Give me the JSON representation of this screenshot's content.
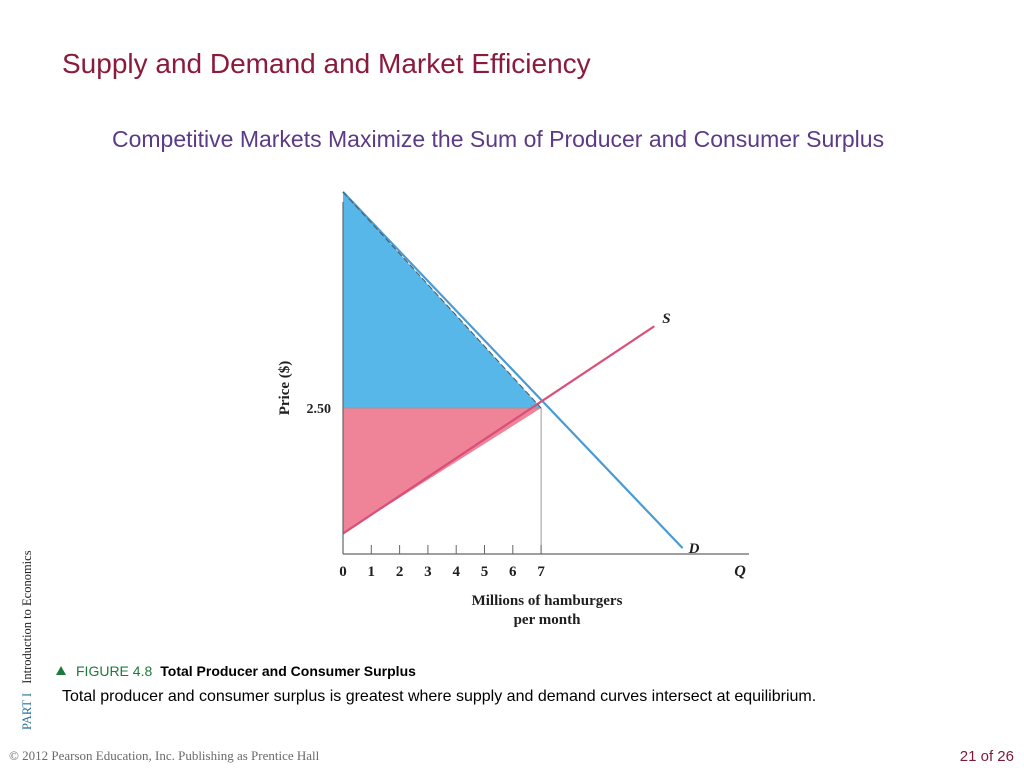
{
  "slide": {
    "title": "Supply and Demand and Market Efficiency",
    "subtitle": "Competitive Markets Maximize the Sum of Producer and Consumer Surplus"
  },
  "side_label": {
    "part": "PART",
    "part_number": "I",
    "book": "Introduction to Economics"
  },
  "figure": {
    "number": "FIGURE 4.8",
    "title": "Total Producer and Consumer Surplus",
    "description": "Total producer and consumer surplus is greatest where supply and demand curves intersect at equilibrium."
  },
  "footer": {
    "copyright": "© 2012 Pearson Education, Inc. Publishing as Prentice Hall",
    "page": "21 of 26"
  },
  "chart_data": {
    "type": "line",
    "x_label_line1": "Millions of hamburgers",
    "x_label_line2": "per month",
    "y_label": "Price ($)",
    "x_axis_letter": "Q",
    "x_ticks": [
      "0",
      "1",
      "2",
      "3",
      "4",
      "5",
      "6",
      "7"
    ],
    "y_tick_label": "2.50",
    "equilibrium": {
      "q": 7,
      "p": 2.5
    },
    "series": [
      {
        "name": "S",
        "color": "#d94f78",
        "points": [
          [
            0,
            0.35
          ],
          [
            11,
            3.9
          ]
        ]
      },
      {
        "name": "D",
        "color": "#4a9bd4",
        "points": [
          [
            0,
            6.2
          ],
          [
            12,
            0.1
          ]
        ]
      }
    ],
    "areas": [
      {
        "label": "consumer surplus",
        "color": "#56b7e8"
      },
      {
        "label": "producer surplus",
        "color": "#ef8499"
      }
    ],
    "grid": false
  }
}
